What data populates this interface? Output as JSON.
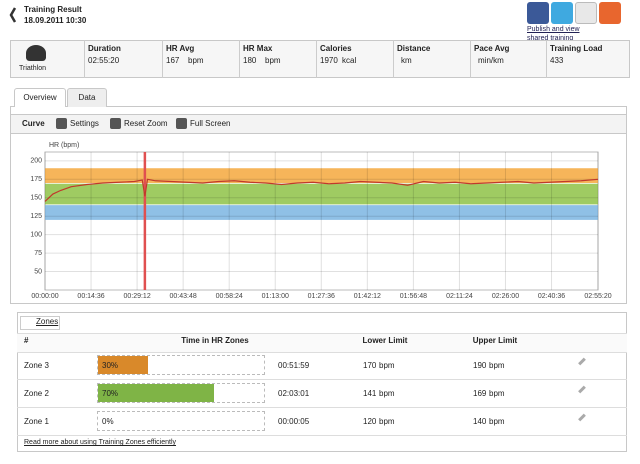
{
  "header": {
    "title": "Training Result",
    "datetime": "18.09.2011 10:30",
    "share_link": "Publish and view shared training"
  },
  "summary": {
    "sport": "Triathlon",
    "stats": [
      {
        "label": "Duration",
        "value": "02:55:20"
      },
      {
        "label": "HR Avg",
        "value": "167",
        "unit": "bpm"
      },
      {
        "label": "HR Max",
        "value": "180",
        "unit": "bpm"
      },
      {
        "label": "Calories",
        "value": "1970",
        "unit": "kcal"
      },
      {
        "label": "Distance",
        "unit": "km"
      },
      {
        "label": "Pace Avg",
        "unit": "min/km"
      },
      {
        "label": "Training Load",
        "value": "433"
      }
    ]
  },
  "tabs": [
    "Overview",
    "Data"
  ],
  "toolbar": [
    "Curve",
    "Settings",
    "Reset Zoom",
    "Full Screen"
  ],
  "chart_data": {
    "type": "line",
    "y_label": "HR (bpm)",
    "color": "#c0392b",
    "x": [
      0,
      150,
      300,
      500,
      800,
      1100,
      1400,
      1700,
      1850,
      1900,
      1950,
      2100,
      2400,
      2700,
      3000,
      3300,
      3600,
      3900,
      4200,
      4500,
      4800,
      5100,
      5400,
      5700,
      6000,
      6300,
      6600,
      6900,
      7200,
      7500,
      7800,
      8100,
      8400,
      8700,
      9000,
      9300,
      9600,
      9900,
      10200,
      10520
    ],
    "values": [
      145,
      155,
      160,
      165,
      168,
      170,
      171,
      172,
      174,
      152,
      175,
      173,
      172,
      171,
      170,
      172,
      173,
      171,
      170,
      168,
      170,
      171,
      169,
      170,
      172,
      171,
      170,
      167,
      172,
      170,
      171,
      169,
      170,
      171,
      172,
      170,
      171,
      172,
      173,
      175
    ],
    "xlim": [
      0,
      10520
    ],
    "xticks": [
      {
        "value": 0,
        "label": "00:00:00"
      },
      {
        "value": 876,
        "label": "00:14:36"
      },
      {
        "value": 1752,
        "label": "00:29:12"
      },
      {
        "value": 2628,
        "label": "00:43:48"
      },
      {
        "value": 3504,
        "label": "00:58:24"
      },
      {
        "value": 4380,
        "label": "01:13:00"
      },
      {
        "value": 5256,
        "label": "01:27:36"
      },
      {
        "value": 6132,
        "label": "01:42:12"
      },
      {
        "value": 7008,
        "label": "01:56:48"
      },
      {
        "value": 7884,
        "label": "02:11:24"
      },
      {
        "value": 8760,
        "label": "02:26:00"
      },
      {
        "value": 9636,
        "label": "02:40:36"
      },
      {
        "value": 10520,
        "label": "02:55:20"
      }
    ],
    "ylim": [
      25,
      212
    ],
    "yticks": [
      50,
      75,
      100,
      125,
      150,
      175,
      200
    ],
    "grid": true,
    "marker_x": 1900,
    "marker_color": "#e05050"
  },
  "zones": {
    "tab": "Zones",
    "columns": [
      "#",
      "Time in HR Zones",
      "Lower Limit",
      "Upper Limit"
    ],
    "unit": "bpm",
    "rows": [
      {
        "name": "Zone 3",
        "percent": 30,
        "percent_label": "30%",
        "time": "00:51:59",
        "lower": 170,
        "upper": 190,
        "color": "#d9892a",
        "band_color": "#f6b55a"
      },
      {
        "name": "Zone 2",
        "percent": 70,
        "percent_label": "70%",
        "time": "02:03:01",
        "lower": 141,
        "upper": 169,
        "color": "#7fb446",
        "band_color": "#9fcb62"
      },
      {
        "name": "Zone 1",
        "percent": 0,
        "percent_label": "0%",
        "time": "00:00:05",
        "lower": 120,
        "upper": 140,
        "color": "#6fa8d8",
        "band_color": "#8fc0e6"
      }
    ],
    "link": "Read more about using Training Zones efficiently"
  }
}
